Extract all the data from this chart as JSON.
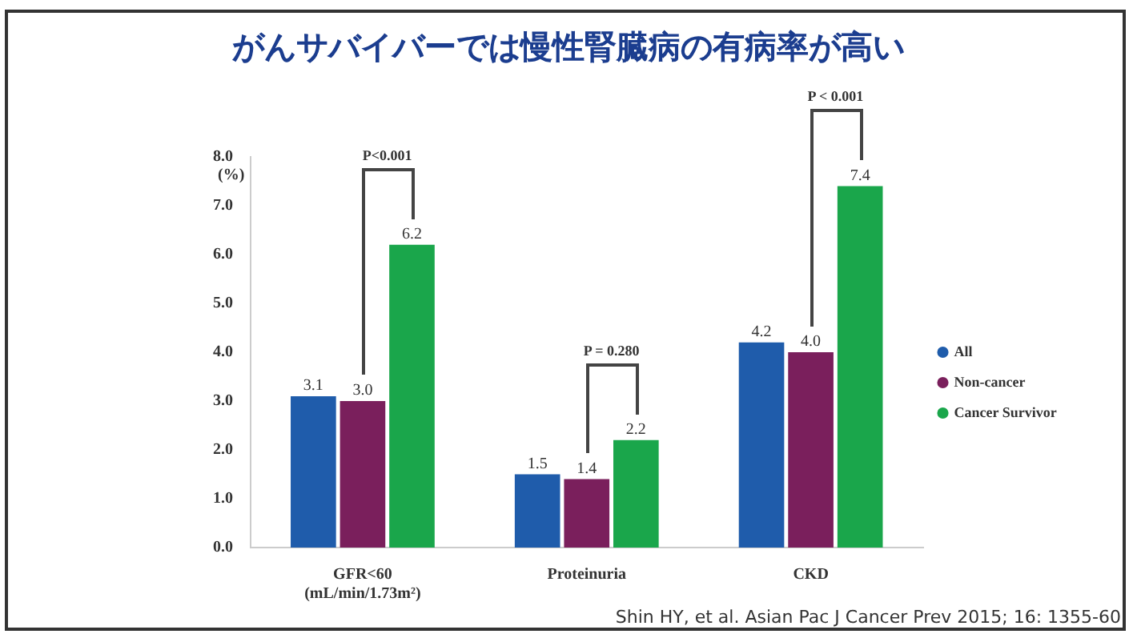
{
  "chart_data": {
    "type": "bar",
    "title": "がんサバイバーでは慢性腎臓病の有病率が高い",
    "ylabel": "(%)",
    "categories": [
      "GFR<60\n(mL/min/1.73m²)",
      "Proteinuria",
      "CKD"
    ],
    "series": [
      {
        "name": "All",
        "color": "#1f5cab",
        "values": [
          3.1,
          1.5,
          4.2
        ],
        "value_labels": [
          "3.1",
          "1.5",
          "4.2"
        ]
      },
      {
        "name": "Non-cancer",
        "color": "#7a1f5c",
        "values": [
          3.0,
          1.4,
          4.0
        ],
        "value_labels": [
          "3.0",
          "1.4",
          "4.0"
        ]
      },
      {
        "name": "Cancer Survivor",
        "color": "#1aa64b",
        "values": [
          6.2,
          2.2,
          7.4
        ],
        "value_labels": [
          "6.2",
          "2.2",
          "7.4"
        ]
      }
    ],
    "ylim": [
      0,
      8
    ],
    "yticks": [
      {
        "value": 0,
        "label": "0.0"
      },
      {
        "value": 1,
        "label": "1.0"
      },
      {
        "value": 2,
        "label": "2.0"
      },
      {
        "value": 3,
        "label": "3.0"
      },
      {
        "value": 4,
        "label": "4.0"
      },
      {
        "value": 5,
        "label": "5.0"
      },
      {
        "value": 6,
        "label": "6.0"
      },
      {
        "value": 7,
        "label": "7.0"
      },
      {
        "value": 8,
        "label": "8.0"
      }
    ],
    "grid": false,
    "legend": "right",
    "annotations": [
      "P<0.001",
      "P = 0.280",
      "P < 0.001",
      "Shin HY, et al. Asian Pac J Cancer Prev 2015; 16: 1355-60"
    ]
  }
}
